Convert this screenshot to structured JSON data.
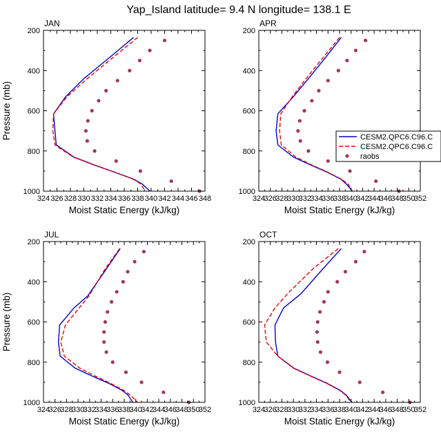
{
  "title": "Yap_Island  latitude= 9.4 N longitude= 138.1 E",
  "legend": {
    "entries": [
      {
        "label": "CESM2.QPC6.C96.C",
        "style": "solid",
        "color": "#0000cc"
      },
      {
        "label": "CESM2.QPC6.C96.C",
        "style": "dashed",
        "color": "#ee0000"
      },
      {
        "label": "raobs",
        "style": "marker",
        "color": "#a0395a"
      }
    ]
  },
  "chart_data": [
    {
      "type": "line",
      "panel_label": "JAN",
      "xlabel": "Moist Static Energy (kJ/kg)",
      "ylabel": "Pressure (mb)",
      "xlim": [
        324,
        348
      ],
      "xticks": [
        324,
        326,
        328,
        330,
        332,
        334,
        336,
        338,
        340,
        342,
        344,
        346,
        348
      ],
      "ylim": [
        200,
        1000
      ],
      "yticks": [
        200,
        400,
        600,
        800,
        1000
      ],
      "y_inverted": true,
      "series": [
        {
          "style": "solid",
          "color": "#0000cc",
          "points": [
            [
              337.4,
              235
            ],
            [
              334.0,
              330
            ],
            [
              330.0,
              440
            ],
            [
              327.3,
              530
            ],
            [
              325.5,
              615
            ],
            [
              325.7,
              700
            ],
            [
              325.9,
              770
            ],
            [
              328.5,
              830
            ],
            [
              331.6,
              870
            ],
            [
              334.5,
              905
            ],
            [
              337.4,
              940
            ],
            [
              338.7,
              965
            ],
            [
              340.0,
              1005
            ]
          ]
        },
        {
          "style": "dashed",
          "color": "#ee0000",
          "points": [
            [
              338.0,
              235
            ],
            [
              334.5,
              330
            ],
            [
              330.5,
              440
            ],
            [
              327.5,
              530
            ],
            [
              325.5,
              615
            ],
            [
              325.4,
              700
            ],
            [
              325.7,
              770
            ],
            [
              328.4,
              830
            ],
            [
              331.5,
              870
            ],
            [
              334.5,
              905
            ],
            [
              337.3,
              940
            ],
            [
              338.5,
              965
            ],
            [
              339.2,
              1005
            ]
          ]
        },
        {
          "style": "marker",
          "color": "#a0395a",
          "points": [
            [
              342.0,
              250
            ],
            [
              339.8,
              300
            ],
            [
              338.3,
              350
            ],
            [
              336.8,
              400
            ],
            [
              335.0,
              450
            ],
            [
              333.3,
              500
            ],
            [
              332.2,
              550
            ],
            [
              331.2,
              600
            ],
            [
              330.6,
              650
            ],
            [
              330.3,
              700
            ],
            [
              330.5,
              750
            ],
            [
              331.6,
              800
            ],
            [
              334.8,
              850
            ],
            [
              338.4,
              900
            ],
            [
              343.0,
              950
            ],
            [
              347.2,
              1000
            ]
          ]
        }
      ]
    },
    {
      "type": "line",
      "panel_label": "APR",
      "xlabel": "Moist Static Energy (kJ/kg)",
      "ylabel": "",
      "xlim": [
        324,
        352
      ],
      "xticks": [
        324,
        326,
        328,
        330,
        332,
        334,
        336,
        338,
        340,
        342,
        344,
        346,
        348,
        350,
        352
      ],
      "ylim": [
        200,
        1000
      ],
      "yticks": [
        200,
        400,
        600,
        800,
        1000
      ],
      "y_inverted": true,
      "series": [
        {
          "style": "solid",
          "color": "#0000cc",
          "points": [
            [
              338.3,
              235
            ],
            [
              335.7,
              330
            ],
            [
              332.6,
              440
            ],
            [
              330.0,
              530
            ],
            [
              327.3,
              615
            ],
            [
              327.0,
              700
            ],
            [
              327.3,
              770
            ],
            [
              330.0,
              830
            ],
            [
              333.0,
              870
            ],
            [
              335.8,
              905
            ],
            [
              338.2,
              940
            ],
            [
              339.2,
              965
            ],
            [
              340.4,
              1005
            ]
          ]
        },
        {
          "style": "dashed",
          "color": "#ee0000",
          "points": [
            [
              338.0,
              235
            ],
            [
              335.3,
              330
            ],
            [
              332.2,
              440
            ],
            [
              329.8,
              530
            ],
            [
              327.8,
              615
            ],
            [
              327.6,
              700
            ],
            [
              327.9,
              770
            ],
            [
              330.4,
              830
            ],
            [
              333.2,
              870
            ],
            [
              335.9,
              905
            ],
            [
              338.3,
              940
            ],
            [
              339.5,
              965
            ],
            [
              340.3,
              1005
            ]
          ]
        },
        {
          "style": "marker",
          "color": "#a0395a",
          "points": [
            [
              342.5,
              250
            ],
            [
              340.8,
              300
            ],
            [
              339.3,
              350
            ],
            [
              337.8,
              400
            ],
            [
              336.0,
              450
            ],
            [
              334.4,
              500
            ],
            [
              333.2,
              550
            ],
            [
              331.9,
              600
            ],
            [
              331.1,
              650
            ],
            [
              330.8,
              700
            ],
            [
              331.2,
              750
            ],
            [
              332.6,
              800
            ],
            [
              336.0,
              850
            ],
            [
              339.8,
              900
            ],
            [
              344.3,
              950
            ],
            [
              348.3,
              1000
            ]
          ]
        }
      ]
    },
    {
      "type": "line",
      "panel_label": "JUL",
      "xlabel": "Moist Static Energy (kJ/kg)",
      "ylabel": "Pressure (mb)",
      "xlim": [
        324,
        352
      ],
      "xticks": [
        324,
        326,
        328,
        330,
        332,
        334,
        336,
        338,
        340,
        342,
        344,
        346,
        348,
        350,
        352
      ],
      "ylim": [
        200,
        1000
      ],
      "yticks": [
        200,
        400,
        600,
        800,
        1000
      ],
      "y_inverted": true,
      "series": [
        {
          "style": "solid",
          "color": "#0000cc",
          "points": [
            [
              337.3,
              235
            ],
            [
              334.8,
              340
            ],
            [
              331.7,
              470
            ],
            [
              329.3,
              530
            ],
            [
              326.8,
              615
            ],
            [
              326.6,
              700
            ],
            [
              326.9,
              770
            ],
            [
              329.5,
              830
            ],
            [
              332.5,
              870
            ],
            [
              335.3,
              905
            ],
            [
              337.6,
              940
            ],
            [
              338.7,
              965
            ],
            [
              339.6,
              1005
            ]
          ]
        },
        {
          "style": "dashed",
          "color": "#ee0000",
          "points": [
            [
              337.2,
              235
            ],
            [
              334.6,
              340
            ],
            [
              331.9,
              470
            ],
            [
              330.2,
              530
            ],
            [
              327.8,
              615
            ],
            [
              327.0,
              700
            ],
            [
              327.6,
              770
            ],
            [
              330.3,
              830
            ],
            [
              333.0,
              870
            ],
            [
              335.6,
              905
            ],
            [
              337.9,
              940
            ],
            [
              339.1,
              965
            ],
            [
              340.5,
              1005
            ]
          ]
        },
        {
          "style": "marker",
          "color": "#a0395a",
          "points": [
            [
              341.4,
              250
            ],
            [
              339.8,
              300
            ],
            [
              338.6,
              350
            ],
            [
              337.8,
              400
            ],
            [
              336.7,
              450
            ],
            [
              335.8,
              500
            ],
            [
              335.1,
              550
            ],
            [
              334.7,
              600
            ],
            [
              334.5,
              650
            ],
            [
              334.5,
              700
            ],
            [
              334.9,
              750
            ],
            [
              336.0,
              800
            ],
            [
              338.3,
              850
            ],
            [
              341.0,
              900
            ],
            [
              344.8,
              950
            ],
            [
              349.2,
              1000
            ]
          ]
        }
      ]
    },
    {
      "type": "line",
      "panel_label": "OCT",
      "xlabel": "Moist Static Energy (kJ/kg)",
      "ylabel": "",
      "xlim": [
        324,
        352
      ],
      "xticks": [
        324,
        326,
        328,
        330,
        332,
        334,
        336,
        338,
        340,
        342,
        344,
        346,
        348,
        350,
        352
      ],
      "ylim": [
        200,
        1000
      ],
      "yticks": [
        200,
        400,
        600,
        800,
        1000
      ],
      "y_inverted": true,
      "series": [
        {
          "style": "solid",
          "color": "#0000cc",
          "points": [
            [
              338.3,
              235
            ],
            [
              335.3,
              330
            ],
            [
              331.3,
              460
            ],
            [
              328.3,
              530
            ],
            [
              326.8,
              615
            ],
            [
              326.9,
              700
            ],
            [
              327.3,
              770
            ],
            [
              330.1,
              830
            ],
            [
              333.1,
              870
            ],
            [
              335.8,
              905
            ],
            [
              338.1,
              940
            ],
            [
              339.2,
              965
            ],
            [
              340.3,
              1005
            ]
          ]
        },
        {
          "style": "dashed",
          "color": "#ee0000",
          "points": [
            [
              337.8,
              235
            ],
            [
              333.6,
              330
            ],
            [
              329.3,
              450
            ],
            [
              326.8,
              530
            ],
            [
              325.0,
              615
            ],
            [
              325.3,
              700
            ],
            [
              327.3,
              770
            ],
            [
              330.0,
              830
            ],
            [
              333.0,
              870
            ],
            [
              335.7,
              905
            ],
            [
              338.0,
              940
            ],
            [
              339.1,
              965
            ],
            [
              340.1,
              1005
            ]
          ]
        },
        {
          "style": "marker",
          "color": "#a0395a",
          "points": [
            [
              342.3,
              250
            ],
            [
              340.8,
              300
            ],
            [
              339.0,
              350
            ],
            [
              337.6,
              400
            ],
            [
              336.0,
              450
            ],
            [
              335.3,
              500
            ],
            [
              334.6,
              550
            ],
            [
              334.2,
              600
            ],
            [
              334.1,
              650
            ],
            [
              334.2,
              700
            ],
            [
              334.7,
              750
            ],
            [
              335.9,
              800
            ],
            [
              338.0,
              850
            ],
            [
              341.5,
              900
            ],
            [
              345.5,
              950
            ],
            [
              350.2,
              1000
            ]
          ]
        }
      ]
    }
  ]
}
